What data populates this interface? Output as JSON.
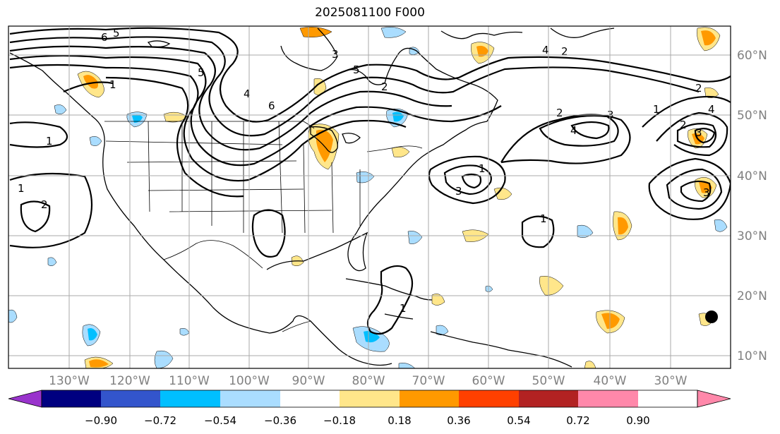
{
  "title": "2025081100 F000",
  "lon_labels": [
    "130°W",
    "120°W",
    "110°W",
    "100°W",
    "90°W",
    "80°W",
    "70°W",
    "60°W",
    "50°W",
    "40°W",
    "30°W"
  ],
  "lat_labels": [
    "60°N",
    "50°N",
    "40°N",
    "30°N",
    "20°N",
    "10°N"
  ],
  "colorbar": {
    "ticks": [
      "−0.90",
      "−0.72",
      "−0.54",
      "−0.36",
      "−0.18",
      "0.18",
      "0.36",
      "0.54",
      "0.72",
      "0.90"
    ],
    "colors": [
      "#9933cc",
      "#000080",
      "#3355cc",
      "#00bfff",
      "#aaddff",
      "#ffffff",
      "#ffe68a",
      "#ff9900",
      "#ff4000",
      "#b22222",
      "#ff88aa"
    ]
  },
  "contour_labels": [
    "6",
    "5",
    "5",
    "4",
    "5",
    "6",
    "1",
    "1",
    "2",
    "2",
    "2",
    "1",
    "1",
    "3",
    "4",
    "3",
    "2",
    "1",
    "4",
    "2",
    "2",
    "4",
    "3",
    "1",
    "1",
    "3",
    "3"
  ]
}
